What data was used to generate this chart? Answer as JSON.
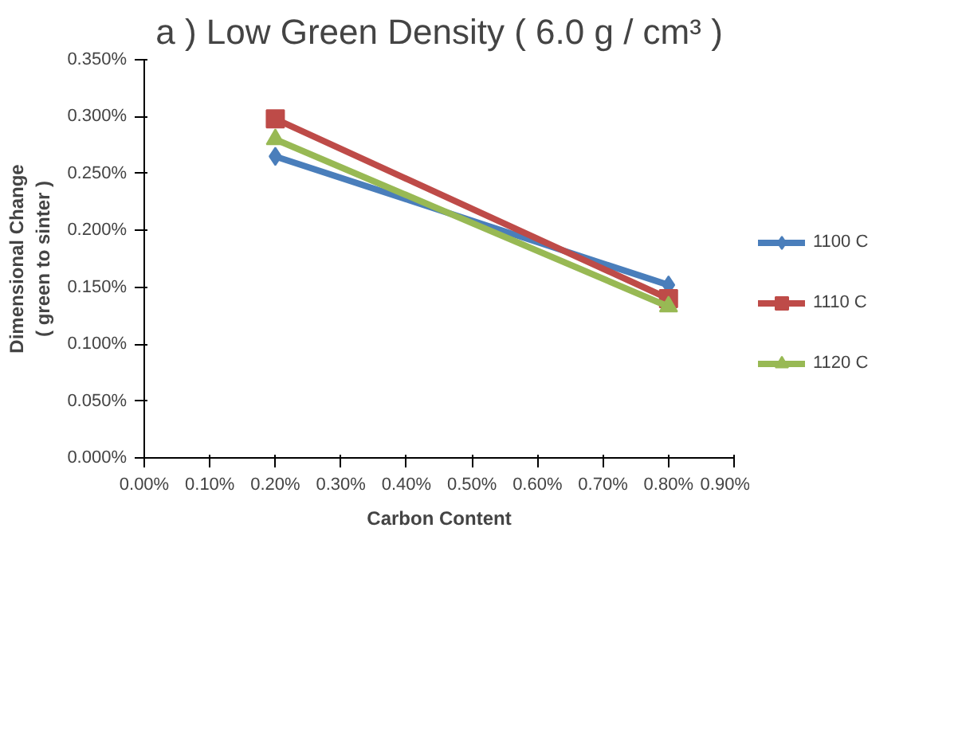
{
  "chart_data": {
    "type": "line",
    "title": "a ) Low Green Density ( 6.0 g / cm³ )",
    "xlabel": "Carbon Content",
    "ylabel": "Dimensional Change\n( green to sinter )",
    "x": [
      0.2,
      0.8
    ],
    "series": [
      {
        "name": "1100 C",
        "color": "#4a7ebb",
        "values": [
          0.265,
          0.152
        ],
        "marker": "diamond"
      },
      {
        "name": "1110 C",
        "color": "#be4b48",
        "values": [
          0.298,
          0.14
        ],
        "marker": "square"
      },
      {
        "name": "1120 C",
        "color": "#98b954",
        "values": [
          0.28,
          0.133
        ],
        "marker": "triangle"
      }
    ],
    "xlim": [
      0,
      0.9
    ],
    "xticks": [
      {
        "value": 0,
        "label": "0.00%"
      },
      {
        "value": 0.1,
        "label": "0.10%"
      },
      {
        "value": 0.2,
        "label": "0.20%"
      },
      {
        "value": 0.3,
        "label": "0.30%"
      },
      {
        "value": 0.4,
        "label": "0.40%"
      },
      {
        "value": 0.5,
        "label": "0.50%"
      },
      {
        "value": 0.6,
        "label": "0.60%"
      },
      {
        "value": 0.7,
        "label": "0.70%"
      },
      {
        "value": 0.8,
        "label": "0.80%"
      },
      {
        "value": 0.9,
        "label": "0.90%"
      }
    ],
    "ylim": [
      0,
      0.35
    ],
    "yticks": [
      {
        "value": 0,
        "label": "0.000%"
      },
      {
        "value": 0.05,
        "label": "0.050%"
      },
      {
        "value": 0.1,
        "label": "0.100%"
      },
      {
        "value": 0.15,
        "label": "0.150%"
      },
      {
        "value": 0.2,
        "label": "0.200%"
      },
      {
        "value": 0.25,
        "label": "0.250%"
      },
      {
        "value": 0.3,
        "label": "0.300%"
      },
      {
        "value": 0.35,
        "label": "0.350%"
      }
    ],
    "grid": false,
    "legend": "right",
    "line_style": "solid"
  }
}
